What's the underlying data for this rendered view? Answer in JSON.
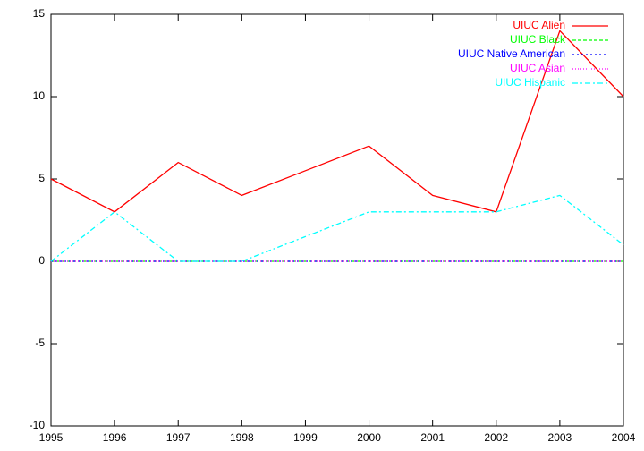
{
  "chart_data": {
    "type": "line",
    "x": [
      1995,
      1996,
      1997,
      1998,
      1999,
      2000,
      2001,
      2002,
      2003,
      2004
    ],
    "series": [
      {
        "name": "UIUC Alien",
        "color": "#ff0000",
        "values": [
          5,
          3,
          6,
          4,
          5.5,
          7,
          4,
          3,
          14,
          10
        ]
      },
      {
        "name": "UIUC Black",
        "color": "#00ff00",
        "values": [
          0,
          0,
          0,
          0,
          0,
          0,
          0,
          0,
          0,
          0
        ]
      },
      {
        "name": "UIUC Native American",
        "color": "#0000ff",
        "values": [
          0,
          0,
          0,
          0,
          0,
          0,
          0,
          0,
          0,
          0
        ]
      },
      {
        "name": "UIUC Asian",
        "color": "#ff00ff",
        "values": [
          0,
          0,
          0,
          0,
          0,
          0,
          0,
          0,
          0,
          0
        ]
      },
      {
        "name": "UIUC Hispanic",
        "color": "#00ffff",
        "values": [
          0,
          3,
          0,
          0,
          1.5,
          3,
          3,
          3,
          4,
          1
        ]
      }
    ],
    "xlim": [
      1995,
      2004
    ],
    "xticks": [
      1995,
      1996,
      1997,
      1998,
      1999,
      2000,
      2001,
      2002,
      2003,
      2004
    ],
    "ylim": [
      -10,
      15
    ],
    "yticks": [
      -10,
      -5,
      0,
      5,
      10,
      15
    ],
    "legend": "top-right",
    "grid": false
  }
}
